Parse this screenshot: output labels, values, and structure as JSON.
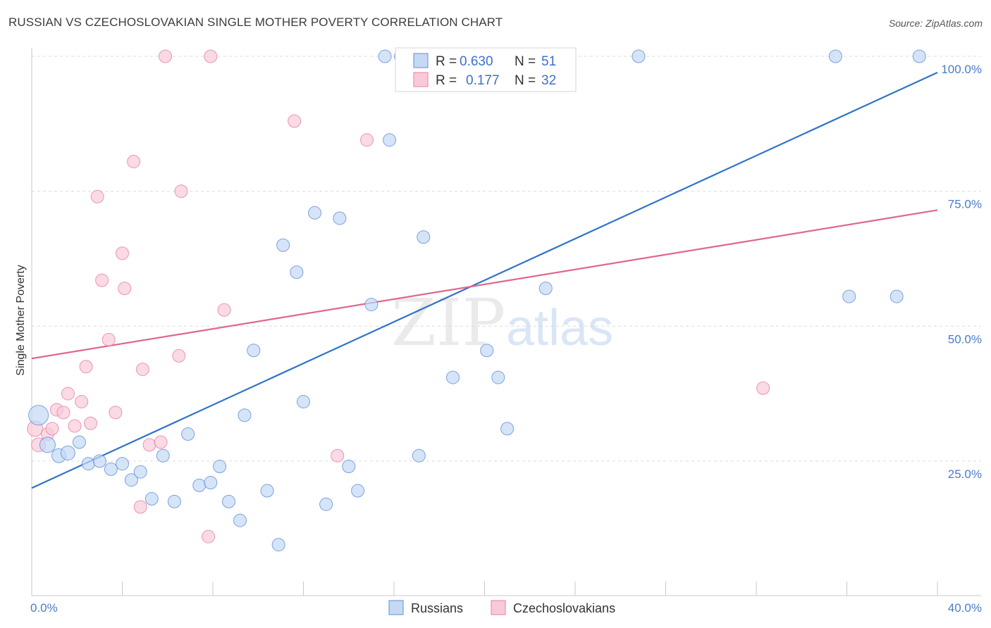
{
  "title": "RUSSIAN VS CZECHOSLOVAKIAN SINGLE MOTHER POVERTY CORRELATION CHART",
  "source": "Source: ZipAtlas.com",
  "watermark": {
    "zip": "ZIP",
    "atlas": "atlas"
  },
  "legend_top": {
    "rows": [
      {
        "r_label": "R =",
        "r_value": "0.630",
        "n_label": "N =",
        "n_value": "51"
      },
      {
        "r_label": "R =",
        "r_value": "0.177",
        "n_label": "N =",
        "n_value": "32"
      }
    ]
  },
  "chart_data": {
    "type": "scatter",
    "title": "RUSSIAN VS CZECHOSLOVAKIAN SINGLE MOTHER POVERTY CORRELATION CHART",
    "xlabel": "",
    "ylabel": "Single Mother Poverty",
    "xlim": [
      0,
      40
    ],
    "ylim": [
      0,
      105
    ],
    "x_tick_labels": [
      "0.0%",
      "40.0%"
    ],
    "y_ticks": [
      25,
      50,
      75,
      100
    ],
    "y_tick_labels": [
      "25.0%",
      "50.0%",
      "75.0%",
      "100.0%"
    ],
    "grid": true,
    "legend_position": "top-center",
    "colors": {
      "russians": "#5b8fd9",
      "russians_fill": "#c5d9f5",
      "czechoslovakians": "#e87ea1",
      "czechoslovakians_fill": "#f8cad9",
      "russians_line": "#2f73c9",
      "czechoslovakians_line": "#e06690",
      "axis_text": "#4a7cc7"
    },
    "series": [
      {
        "name": "Russians",
        "r": 0.63,
        "n": 51,
        "trend": {
          "x": [
            0,
            40
          ],
          "y": [
            20,
            97
          ]
        },
        "points": [
          [
            0.3,
            33.5,
            14
          ],
          [
            0.7,
            28,
            11
          ],
          [
            1.2,
            26,
            10
          ],
          [
            1.6,
            26.5,
            10
          ],
          [
            2.1,
            28.5,
            9
          ],
          [
            2.5,
            24.5,
            9
          ],
          [
            3.0,
            25,
            9
          ],
          [
            3.5,
            23.5,
            9
          ],
          [
            4.0,
            24.5,
            9
          ],
          [
            4.4,
            21.5,
            9
          ],
          [
            4.8,
            23,
            9
          ],
          [
            5.3,
            18,
            9
          ],
          [
            5.8,
            26,
            9
          ],
          [
            6.3,
            17.5,
            9
          ],
          [
            6.9,
            30,
            9
          ],
          [
            7.4,
            20.5,
            9
          ],
          [
            7.9,
            21,
            9
          ],
          [
            8.3,
            24,
            9
          ],
          [
            8.7,
            17.5,
            9
          ],
          [
            9.2,
            14,
            9
          ],
          [
            9.4,
            33.5,
            9
          ],
          [
            9.8,
            45.5,
            9
          ],
          [
            10.4,
            19.5,
            9
          ],
          [
            10.9,
            9.5,
            9
          ],
          [
            11.1,
            65,
            9
          ],
          [
            11.7,
            60,
            9
          ],
          [
            12.0,
            36,
            9
          ],
          [
            12.5,
            71,
            9
          ],
          [
            13.0,
            17,
            9
          ],
          [
            13.6,
            70,
            9
          ],
          [
            14.0,
            24,
            9
          ],
          [
            14.4,
            19.5,
            9
          ],
          [
            15.0,
            54,
            9
          ],
          [
            15.6,
            100,
            9
          ],
          [
            15.8,
            84.5,
            9
          ],
          [
            16.3,
            100,
            9
          ],
          [
            16.8,
            100,
            9
          ],
          [
            17.1,
            26,
            9
          ],
          [
            17.3,
            66.5,
            9
          ],
          [
            17.9,
            100,
            9
          ],
          [
            18.6,
            40.5,
            9
          ],
          [
            20.1,
            45.5,
            9
          ],
          [
            20.6,
            40.5,
            9
          ],
          [
            21.0,
            31,
            9
          ],
          [
            22.3,
            100,
            9
          ],
          [
            22.7,
            57,
            9
          ],
          [
            26.8,
            100,
            9
          ],
          [
            35.5,
            100,
            9
          ],
          [
            36.1,
            55.5,
            9
          ],
          [
            38.2,
            55.5,
            9
          ],
          [
            39.2,
            100,
            9
          ]
        ]
      },
      {
        "name": "Czechoslovakians",
        "r": 0.177,
        "n": 32,
        "trend": {
          "x": [
            0,
            40
          ],
          "y": [
            44,
            71.5
          ]
        },
        "points": [
          [
            0.15,
            31,
            11
          ],
          [
            0.3,
            28,
            10
          ],
          [
            0.7,
            30,
            9
          ],
          [
            0.9,
            31,
            9
          ],
          [
            1.1,
            34.5,
            9
          ],
          [
            1.4,
            34,
            9
          ],
          [
            1.6,
            37.5,
            9
          ],
          [
            1.9,
            31.5,
            9
          ],
          [
            2.2,
            36,
            9
          ],
          [
            2.4,
            42.5,
            9
          ],
          [
            2.6,
            32,
            9
          ],
          [
            2.9,
            74,
            9
          ],
          [
            3.1,
            58.5,
            9
          ],
          [
            3.4,
            47.5,
            9
          ],
          [
            3.7,
            34,
            9
          ],
          [
            4.0,
            63.5,
            9
          ],
          [
            4.1,
            57,
            9
          ],
          [
            4.5,
            80.5,
            9
          ],
          [
            4.8,
            16.5,
            9
          ],
          [
            4.9,
            42,
            9
          ],
          [
            5.2,
            28,
            9
          ],
          [
            5.7,
            28.5,
            9
          ],
          [
            5.9,
            100,
            9
          ],
          [
            6.5,
            44.5,
            9
          ],
          [
            6.6,
            75,
            9
          ],
          [
            7.8,
            11,
            9
          ],
          [
            7.9,
            100,
            9
          ],
          [
            8.5,
            53,
            9
          ],
          [
            11.6,
            88,
            9
          ],
          [
            13.5,
            26,
            9
          ],
          [
            14.8,
            84.5,
            9
          ],
          [
            32.3,
            38.5,
            9
          ]
        ]
      }
    ]
  },
  "bottom_legend": {
    "items": [
      "Russians",
      "Czechoslovakians"
    ]
  }
}
